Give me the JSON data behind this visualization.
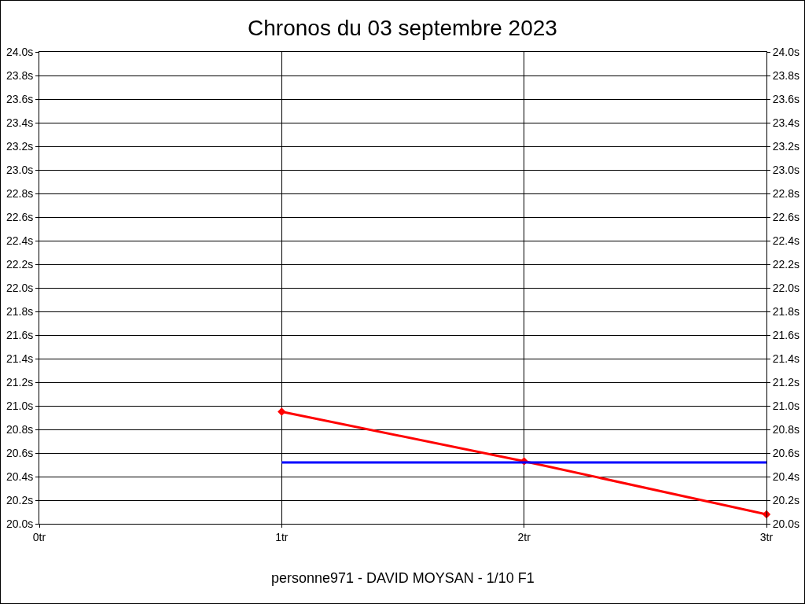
{
  "chart_data": {
    "type": "line",
    "title": "Chronos du 03 septembre 2023",
    "annotations": [
      "personne971 - DAVID MOYSAN - 1/10 F1"
    ],
    "x": [
      1,
      2,
      3
    ],
    "series": [
      {
        "color": "#ff0000",
        "values": [
          20.95,
          20.53,
          20.08
        ],
        "marker": "diamond"
      },
      {
        "color": "#0000ff",
        "x": [
          1,
          3
        ],
        "values": [
          20.52,
          20.52
        ],
        "marker": "none"
      }
    ],
    "xlim": [
      0,
      3
    ],
    "xticks": [
      {
        "value": 0,
        "label": "0tr"
      },
      {
        "value": 1,
        "label": "1tr"
      },
      {
        "value": 2,
        "label": "2tr"
      },
      {
        "value": 3,
        "label": "3tr"
      }
    ],
    "ylim": [
      20,
      24
    ],
    "yticks": [
      {
        "value": 20,
        "label": "20.0s"
      },
      {
        "value": 20.2,
        "label": "20.2s"
      },
      {
        "value": 20.4,
        "label": "20.4s"
      },
      {
        "value": 20.6,
        "label": "20.6s"
      },
      {
        "value": 20.8,
        "label": "20.8s"
      },
      {
        "value": 21,
        "label": "21.0s"
      },
      {
        "value": 21.2,
        "label": "21.2s"
      },
      {
        "value": 21.4,
        "label": "21.4s"
      },
      {
        "value": 21.6,
        "label": "21.6s"
      },
      {
        "value": 21.8,
        "label": "21.8s"
      },
      {
        "value": 22,
        "label": "22.0s"
      },
      {
        "value": 22.2,
        "label": "22.2s"
      },
      {
        "value": 22.4,
        "label": "22.4s"
      },
      {
        "value": 22.6,
        "label": "22.6s"
      },
      {
        "value": 22.8,
        "label": "22.8s"
      },
      {
        "value": 23,
        "label": "23.0s"
      },
      {
        "value": 23.2,
        "label": "23.2s"
      },
      {
        "value": 23.4,
        "label": "23.4s"
      },
      {
        "value": 23.6,
        "label": "23.6s"
      },
      {
        "value": 23.8,
        "label": "23.8s"
      },
      {
        "value": 24,
        "label": "24.0s"
      }
    ],
    "y2lim": [
      20,
      24
    ],
    "y2ticks": [
      {
        "value": 20,
        "label": "20.0s"
      },
      {
        "value": 20.2,
        "label": "20.2s"
      },
      {
        "value": 20.4,
        "label": "20.4s"
      },
      {
        "value": 20.6,
        "label": "20.6s"
      },
      {
        "value": 20.8,
        "label": "20.8s"
      },
      {
        "value": 21,
        "label": "21.0s"
      },
      {
        "value": 21.2,
        "label": "21.2s"
      },
      {
        "value": 21.4,
        "label": "21.4s"
      },
      {
        "value": 21.6,
        "label": "21.6s"
      },
      {
        "value": 21.8,
        "label": "21.8s"
      },
      {
        "value": 22,
        "label": "22.0s"
      },
      {
        "value": 22.2,
        "label": "22.2s"
      },
      {
        "value": 22.4,
        "label": "22.4s"
      },
      {
        "value": 22.6,
        "label": "22.6s"
      },
      {
        "value": 22.8,
        "label": "22.8s"
      },
      {
        "value": 23,
        "label": "23.0s"
      },
      {
        "value": 23.2,
        "label": "23.2s"
      },
      {
        "value": 23.4,
        "label": "23.4s"
      },
      {
        "value": 23.6,
        "label": "23.6s"
      },
      {
        "value": 23.8,
        "label": "23.8s"
      },
      {
        "value": 24,
        "label": "24.0s"
      }
    ],
    "grid": true,
    "line_style": "solid"
  }
}
